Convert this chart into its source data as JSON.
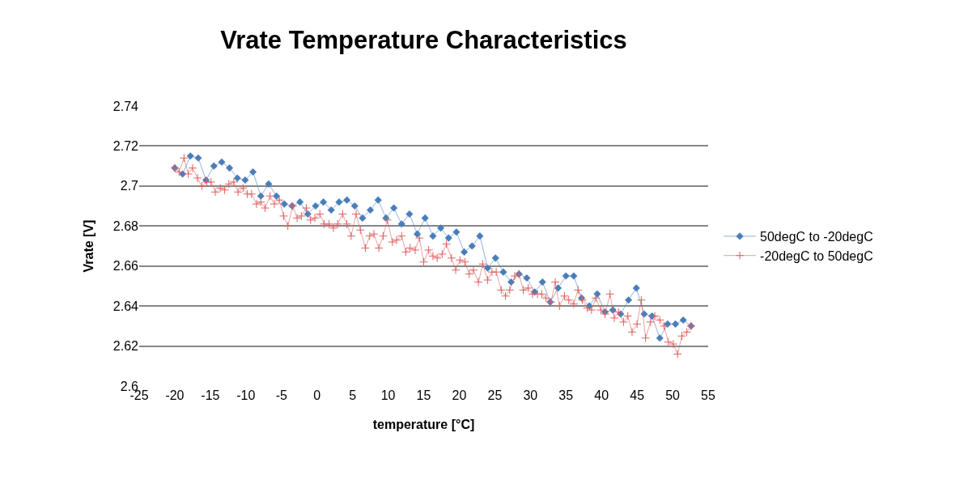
{
  "chart_data": {
    "type": "line",
    "title": "Vrate Temperature Characteristics",
    "xlabel": "temperature [°C]",
    "ylabel": "Vrate [V]",
    "xlim": [
      -25,
      55
    ],
    "xticks": [
      -25,
      -20,
      -15,
      -10,
      -5,
      0,
      5,
      10,
      15,
      20,
      25,
      30,
      35,
      40,
      45,
      50,
      55
    ],
    "ylim": [
      2.6,
      2.74
    ],
    "yticks": [
      2.6,
      2.62,
      2.64,
      2.66,
      2.68,
      2.7,
      2.72,
      2.74
    ],
    "grid": "y",
    "legend": "right",
    "series": [
      {
        "name": "50degC to -20degC",
        "color": "#4a7ebb",
        "marker": "diamond",
        "x": [
          -20,
          -18.9,
          -17.8,
          -16.7,
          -15.6,
          -14.5,
          -13.4,
          -12.3,
          -11.2,
          -10.1,
          -9,
          -7.9,
          -6.8,
          -5.7,
          -4.6,
          -3.5,
          -2.4,
          -1.3,
          -0.2,
          0.9,
          2,
          3.1,
          4.2,
          5.3,
          6.4,
          7.5,
          8.6,
          9.7,
          10.8,
          11.9,
          13,
          14.1,
          15.2,
          16.3,
          17.4,
          18.5,
          19.6,
          20.7,
          21.8,
          22.9,
          24,
          25.1,
          26.2,
          27.3,
          28.4,
          29.5,
          30.6,
          31.7,
          32.8,
          33.9,
          35,
          36.1,
          37.2,
          38.3,
          39.4,
          40.5,
          41.6,
          42.7,
          43.8,
          44.9,
          46,
          47.1,
          48.2,
          49.3,
          50.4,
          51.5,
          52.6
        ],
        "values": [
          2.709,
          2.706,
          2.715,
          2.714,
          2.703,
          2.71,
          2.712,
          2.709,
          2.704,
          2.703,
          2.707,
          2.695,
          2.701,
          2.695,
          2.691,
          2.69,
          2.692,
          2.686,
          2.69,
          2.692,
          2.688,
          2.692,
          2.693,
          2.69,
          2.684,
          2.688,
          2.693,
          2.684,
          2.689,
          2.681,
          2.686,
          2.676,
          2.684,
          2.675,
          2.679,
          2.674,
          2.677,
          2.667,
          2.67,
          2.675,
          2.659,
          2.664,
          2.657,
          2.652,
          2.656,
          2.654,
          2.647,
          2.652,
          2.642,
          2.649,
          2.655,
          2.655,
          2.644,
          2.64,
          2.646,
          2.637,
          2.638,
          2.636,
          2.643,
          2.649,
          2.636,
          2.635,
          2.624,
          2.631,
          2.631,
          2.633,
          2.63
        ]
      },
      {
        "name": "-20degC to 50degC",
        "color": "#e06060",
        "marker": "cross",
        "x": [
          -20.0,
          -19.4,
          -18.7,
          -18.1,
          -17.5,
          -16.8,
          -16.2,
          -15.5,
          -14.9,
          -14.3,
          -13.6,
          -13.0,
          -12.4,
          -11.7,
          -11.1,
          -10.4,
          -9.8,
          -9.2,
          -8.5,
          -7.9,
          -7.3,
          -6.6,
          -6.0,
          -5.3,
          -4.7,
          -4.1,
          -3.4,
          -2.8,
          -2.2,
          -1.5,
          -0.9,
          -0.3,
          0.4,
          1.0,
          1.7,
          2.3,
          2.9,
          3.6,
          4.2,
          4.8,
          5.5,
          6.1,
          6.8,
          7.4,
          8.0,
          8.7,
          9.3,
          9.9,
          10.6,
          11.2,
          11.9,
          12.5,
          13.1,
          13.8,
          14.4,
          15.0,
          15.7,
          16.3,
          16.9,
          17.6,
          18.2,
          18.9,
          19.5,
          20.1,
          20.8,
          21.4,
          22.0,
          22.7,
          23.3,
          24.0,
          24.6,
          25.2,
          25.9,
          26.5,
          27.1,
          27.8,
          28.4,
          29.0,
          29.7,
          30.3,
          31.0,
          31.6,
          32.2,
          32.9,
          33.5,
          34.1,
          34.8,
          35.4,
          36.1,
          36.7,
          37.3,
          38.0,
          38.6,
          39.2,
          39.9,
          40.5,
          41.2,
          41.8,
          42.4,
          43.1,
          43.7,
          44.3,
          45.0,
          45.6,
          46.2,
          46.9,
          47.5,
          48.2,
          48.8,
          49.4,
          50.1,
          50.7,
          51.3,
          52.0,
          52.6
        ],
        "values": [
          2.709,
          2.707,
          2.714,
          2.706,
          2.709,
          2.704,
          2.7,
          2.702,
          2.702,
          2.697,
          2.699,
          2.698,
          2.701,
          2.702,
          2.697,
          2.699,
          2.696,
          2.696,
          2.691,
          2.692,
          2.689,
          2.695,
          2.691,
          2.693,
          2.685,
          2.68,
          2.69,
          2.684,
          2.685,
          2.689,
          2.683,
          2.684,
          2.686,
          2.681,
          2.681,
          2.679,
          2.681,
          2.686,
          2.681,
          2.675,
          2.686,
          2.678,
          2.669,
          2.675,
          2.676,
          2.669,
          2.675,
          2.683,
          2.672,
          2.673,
          2.675,
          2.667,
          2.669,
          2.668,
          2.674,
          2.662,
          2.668,
          2.665,
          2.664,
          2.666,
          2.671,
          2.664,
          2.658,
          2.663,
          2.662,
          2.656,
          2.658,
          2.652,
          2.661,
          2.653,
          2.657,
          2.657,
          2.648,
          2.645,
          2.648,
          2.655,
          2.656,
          2.648,
          2.649,
          2.646,
          2.646,
          2.646,
          2.644,
          2.642,
          2.652,
          2.64,
          2.645,
          2.643,
          2.641,
          2.648,
          2.643,
          2.639,
          2.638,
          2.644,
          2.638,
          2.636,
          2.646,
          2.634,
          2.637,
          2.632,
          2.635,
          2.627,
          2.631,
          2.643,
          2.624,
          2.632,
          2.635,
          2.633,
          2.63,
          2.622,
          2.621,
          2.616,
          2.625,
          2.627,
          2.63
        ]
      }
    ]
  }
}
